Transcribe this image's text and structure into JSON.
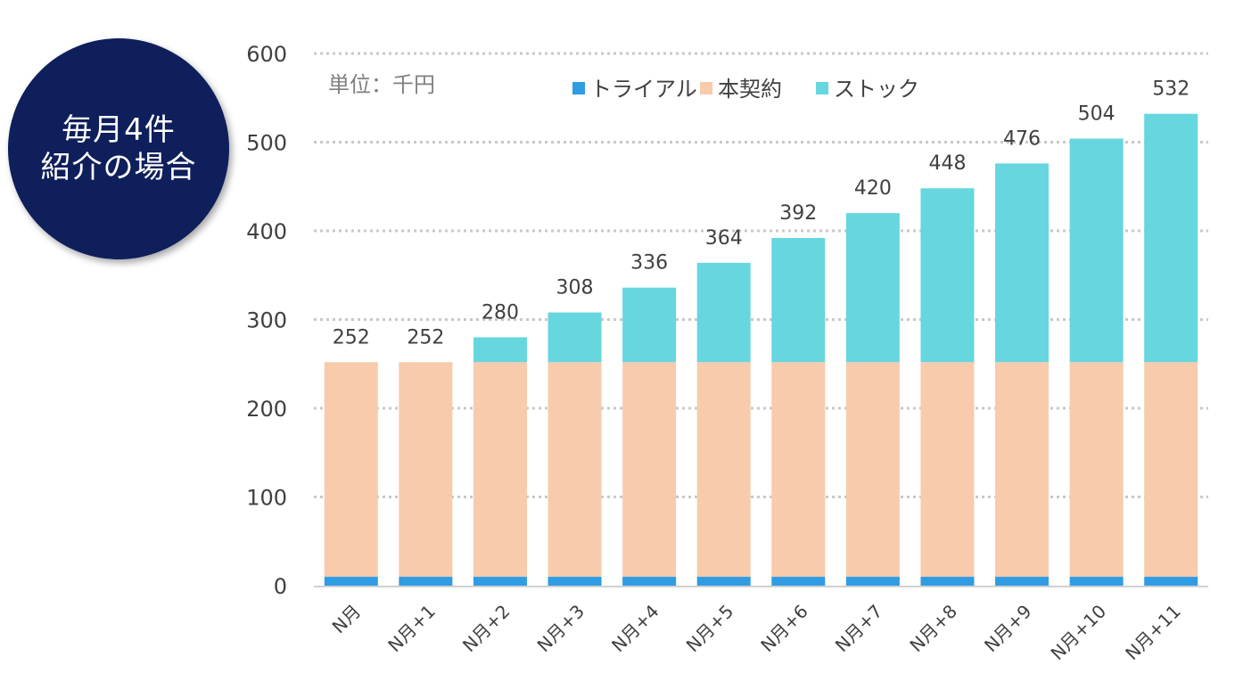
{
  "badge": {
    "line1": "毎月4件",
    "line2": "紹介の場合"
  },
  "unit_label": "単位：千円",
  "colors": {
    "trial": "#2f9ce3",
    "contract": "#f7cbac",
    "stock": "#66d6df",
    "badge": "#0e1f5b"
  },
  "chart_data": {
    "type": "bar",
    "stacked": true,
    "categories": [
      "N月",
      "N月+1",
      "N月+2",
      "N月+3",
      "N月+4",
      "N月+5",
      "N月+6",
      "N月+7",
      "N月+8",
      "N月+9",
      "N月+10",
      "N月+11"
    ],
    "series": [
      {
        "name": "トライアル",
        "values": [
          10,
          10,
          10,
          10,
          10,
          10,
          10,
          10,
          10,
          10,
          10,
          10
        ]
      },
      {
        "name": "本契約",
        "values": [
          242,
          242,
          242,
          242,
          242,
          242,
          242,
          242,
          242,
          242,
          242,
          242
        ]
      },
      {
        "name": "ストック",
        "values": [
          0,
          0,
          28,
          56,
          84,
          112,
          140,
          168,
          196,
          224,
          252,
          280
        ]
      }
    ],
    "totals": [
      252,
      252,
      280,
      308,
      336,
      364,
      392,
      420,
      448,
      476,
      504,
      532
    ],
    "ylim": [
      0,
      600
    ],
    "yticks": [
      0,
      100,
      200,
      300,
      400,
      500,
      600
    ],
    "grid": true,
    "legend_position": "top"
  }
}
